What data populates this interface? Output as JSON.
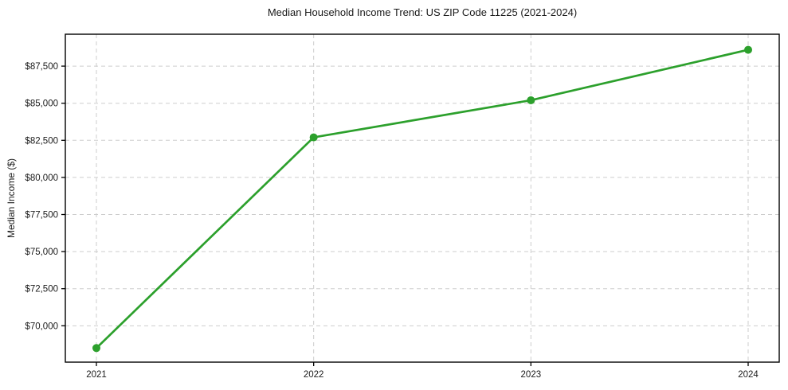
{
  "figure": {
    "title": "Median Household Income Trend: US ZIP Code 11225 (2021-2024)",
    "ylabel": "Median Income ($)"
  },
  "chart_data": {
    "type": "line",
    "title": "Median Household Income Trend: US ZIP Code 11225 (2021-2024)",
    "xlabel": "",
    "ylabel": "Median Income ($)",
    "x": [
      "2021",
      "2022",
      "2023",
      "2024"
    ],
    "series": [
      {
        "name": "Median Household Income",
        "values": [
          68500,
          82700,
          85200,
          88600
        ]
      }
    ],
    "yticks": [
      70000,
      72500,
      75000,
      77500,
      80000,
      82500,
      85000,
      87500
    ],
    "ytick_labels": [
      "$70,000",
      "$72,500",
      "$75,000",
      "$77,500",
      "$80,000",
      "$82,500",
      "$85,000",
      "$87,500"
    ],
    "xtick_labels": [
      "2021",
      "2022",
      "2023",
      "2024"
    ],
    "ylim": [
      67550,
      89650
    ],
    "grid": true,
    "legend": "none",
    "colors": {
      "line": "#2ca02c",
      "marker": "#2ca02c",
      "grid": "#cdcdcd",
      "axis": "#000000",
      "text": "#1a1a1a",
      "background": "#ffffff"
    }
  }
}
